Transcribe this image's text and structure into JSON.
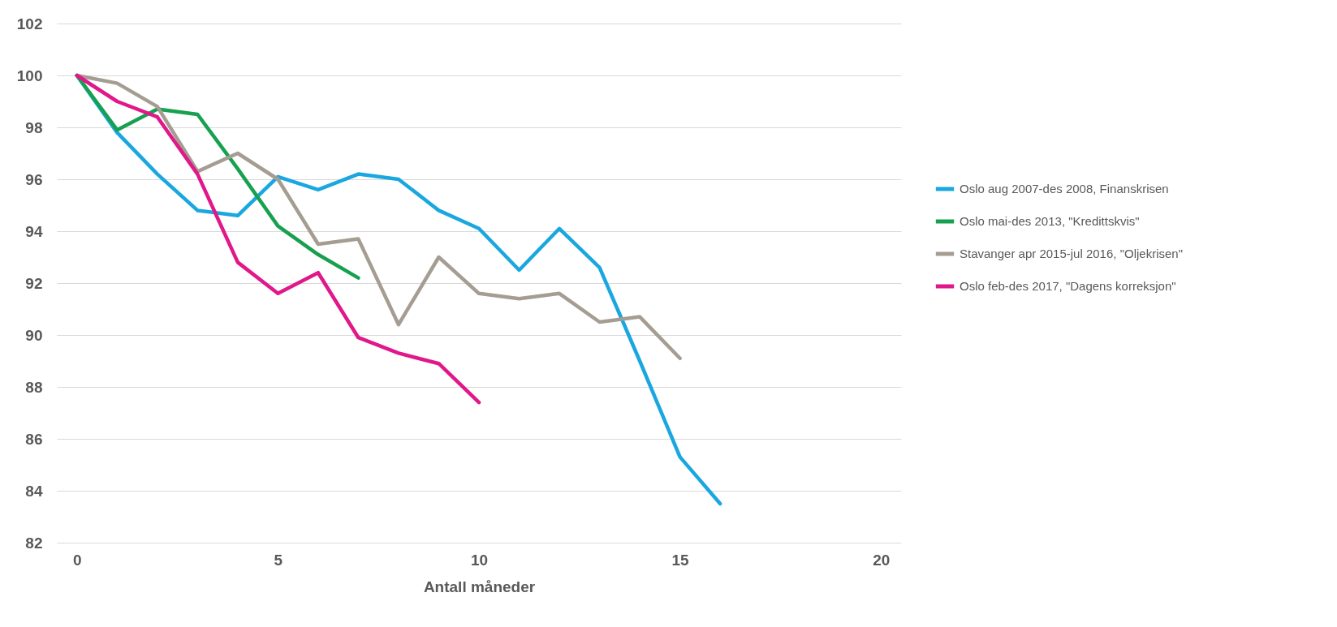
{
  "chart_data": {
    "type": "line",
    "xlabel": "Antall måneder",
    "xlim": [
      -0.5,
      20.5
    ],
    "xticks": [
      0,
      5,
      10,
      15,
      20
    ],
    "ylim": [
      82,
      102
    ],
    "yticks": [
      82,
      84,
      86,
      88,
      90,
      92,
      94,
      96,
      98,
      100,
      102
    ],
    "grid": "y",
    "legend": "right",
    "line_style": "solid",
    "series": [
      {
        "name": "Oslo aug 2007-des 2008, Finanskrisen",
        "color": "#1aa7e0",
        "x": [
          0,
          1,
          2,
          3,
          4,
          5,
          6,
          7,
          8,
          9,
          10,
          11,
          12,
          13,
          14,
          15,
          16
        ],
        "values": [
          100,
          97.8,
          96.2,
          94.8,
          94.6,
          96.1,
          95.6,
          96.2,
          96.0,
          94.8,
          94.1,
          92.5,
          94.1,
          92.6,
          89.0,
          85.3,
          83.5
        ]
      },
      {
        "name": "Oslo mai-des 2013, \"Kredittskvis\"",
        "color": "#17a050",
        "x": [
          0,
          1,
          2,
          3,
          4,
          5,
          6,
          7
        ],
        "values": [
          100,
          97.9,
          98.7,
          98.5,
          96.4,
          94.2,
          93.1,
          92.2
        ]
      },
      {
        "name": "Stavanger apr 2015-jul 2016, \"Oljekrisen\"",
        "color": "#a59d92",
        "x": [
          0,
          1,
          2,
          3,
          4,
          5,
          6,
          7,
          8,
          9,
          10,
          11,
          12,
          13,
          14,
          15
        ],
        "values": [
          100,
          99.7,
          98.8,
          96.3,
          97.0,
          96.0,
          93.5,
          93.7,
          90.4,
          93.0,
          91.6,
          91.4,
          91.6,
          90.5,
          90.7,
          89.1
        ]
      },
      {
        "name": "Oslo feb-des 2017, \"Dagens korreksjon\"",
        "color": "#e0188a",
        "x": [
          0,
          1,
          2,
          3,
          4,
          5,
          6,
          7,
          8,
          9,
          10
        ],
        "values": [
          100,
          99.0,
          98.4,
          96.2,
          92.8,
          91.6,
          92.4,
          89.9,
          89.3,
          88.9,
          87.4
        ]
      }
    ]
  }
}
